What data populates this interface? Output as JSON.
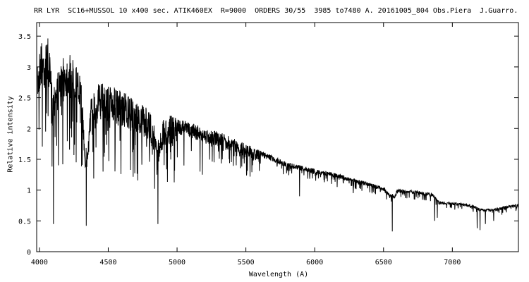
{
  "chart_data": {
    "type": "line",
    "title": "RR LYR  SC16+MUSSOL 10 x400 sec. ATIK460EX  R=9000  ORDERS 30/55  3985 to7480 A. 20161005_804 Obs.Piera  J.Guarro.",
    "xlabel": "Wavelength (A)",
    "ylabel": "Relative intensity",
    "xlim": [
      3980,
      7480
    ],
    "ylim": [
      0,
      3.72
    ],
    "xticks": [
      4000,
      4500,
      5000,
      5500,
      6000,
      6500,
      7000
    ],
    "yticks": [
      0,
      0.5,
      1,
      1.5,
      2,
      2.5,
      3,
      3.5
    ],
    "ytick_labels": [
      "0",
      "0.5",
      "1",
      "1.5",
      "2",
      "2.5",
      "3",
      "3.5"
    ],
    "grid": false,
    "line_color": "#000000",
    "continuum": [
      [
        3985,
        3.0
      ],
      [
        4010,
        3.45
      ],
      [
        4040,
        3.35
      ],
      [
        4060,
        3.5
      ],
      [
        4080,
        3.1
      ],
      [
        4095,
        2.6
      ],
      [
        4115,
        2.9
      ],
      [
        4150,
        3.0
      ],
      [
        4180,
        3.2
      ],
      [
        4220,
        3.2
      ],
      [
        4260,
        3.1
      ],
      [
        4300,
        2.85
      ],
      [
        4320,
        2.2
      ],
      [
        4332,
        1.7
      ],
      [
        4350,
        1.7
      ],
      [
        4370,
        2.5
      ],
      [
        4420,
        2.75
      ],
      [
        4500,
        2.72
      ],
      [
        4600,
        2.6
      ],
      [
        4700,
        2.45
      ],
      [
        4800,
        2.3
      ],
      [
        4830,
        2.1
      ],
      [
        4850,
        1.8
      ],
      [
        4875,
        1.9
      ],
      [
        4900,
        2.15
      ],
      [
        4950,
        2.22
      ],
      [
        5000,
        2.17
      ],
      [
        5100,
        2.1
      ],
      [
        5200,
        2.0
      ],
      [
        5300,
        1.95
      ],
      [
        5400,
        1.85
      ],
      [
        5500,
        1.75
      ],
      [
        5600,
        1.65
      ],
      [
        5700,
        1.55
      ],
      [
        5800,
        1.45
      ],
      [
        5900,
        1.4
      ],
      [
        6000,
        1.35
      ],
      [
        6100,
        1.3
      ],
      [
        6200,
        1.25
      ],
      [
        6300,
        1.18
      ],
      [
        6400,
        1.12
      ],
      [
        6500,
        1.05
      ],
      [
        6540,
        0.95
      ],
      [
        6580,
        0.92
      ],
      [
        6600,
        1.02
      ],
      [
        6700,
        1.0
      ],
      [
        6800,
        0.97
      ],
      [
        6860,
        0.95
      ],
      [
        6900,
        0.82
      ],
      [
        7000,
        0.8
      ],
      [
        7100,
        0.78
      ],
      [
        7150,
        0.76
      ],
      [
        7200,
        0.7
      ],
      [
        7300,
        0.7
      ],
      [
        7400,
        0.75
      ],
      [
        7480,
        0.78
      ]
    ],
    "absorption_lines": [
      [
        4101,
        0.45
      ],
      [
        4045,
        1.95
      ],
      [
        4063,
        2.2
      ],
      [
        4130,
        2.3
      ],
      [
        4227,
        2.0
      ],
      [
        4271,
        2.1
      ],
      [
        4340,
        0.42
      ],
      [
        4383,
        1.9
      ],
      [
        4405,
        2.0
      ],
      [
        4481,
        1.9
      ],
      [
        4550,
        1.7
      ],
      [
        4584,
        1.8
      ],
      [
        4861,
        0.45
      ],
      [
        4920,
        1.6
      ],
      [
        4957,
        1.7
      ],
      [
        5050,
        1.4
      ],
      [
        5167,
        1.3
      ],
      [
        5183,
        1.25
      ],
      [
        5269,
        1.45
      ],
      [
        5328,
        1.5
      ],
      [
        5890,
        0.9
      ],
      [
        6122,
        1.1
      ],
      [
        6162,
        1.05
      ],
      [
        6280,
        0.95
      ],
      [
        6563,
        0.33
      ],
      [
        6870,
        0.5
      ],
      [
        6890,
        0.55
      ],
      [
        7180,
        0.38
      ],
      [
        7200,
        0.35
      ],
      [
        7240,
        0.45
      ],
      [
        7300,
        0.5
      ],
      [
        7360,
        0.6
      ]
    ]
  }
}
